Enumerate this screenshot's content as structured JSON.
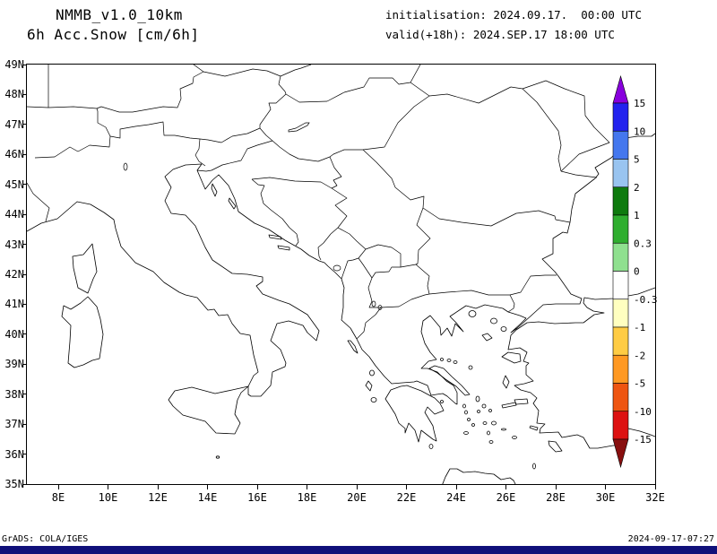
{
  "header": {
    "model": "NMMB_v1.0_10km",
    "field": "6h Acc.Snow [cm/6h]",
    "init_line": "initialisation: 2024.09.17.  00:00 UTC",
    "valid_line": "valid(+18h): 2024.SEP.17 18:00 UTC"
  },
  "map": {
    "lat_ticks": [
      "49N",
      "48N",
      "47N",
      "46N",
      "45N",
      "44N",
      "43N",
      "42N",
      "41N",
      "40N",
      "39N",
      "38N",
      "37N",
      "36N",
      "35N"
    ],
    "lon_ticks": [
      "8E",
      "10E",
      "12E",
      "14E",
      "16E",
      "18E",
      "20E",
      "22E",
      "24E",
      "26E",
      "28E",
      "30E",
      "32E"
    ]
  },
  "colorbar": {
    "labels": [
      "15",
      "10",
      "5",
      "2",
      "1",
      "0.3",
      "0",
      "-0.3",
      "-1",
      "-2",
      "-5",
      "-10",
      "-15"
    ],
    "colors": [
      "#8800dd",
      "#2222ee",
      "#4477ee",
      "#99c4f0",
      "#0e7a0e",
      "#2fae2f",
      "#8fe08f",
      "#ffffff",
      "#ffffc0",
      "#ffcc44",
      "#ff9922",
      "#ee5511",
      "#dd1111",
      "#880f0f"
    ]
  },
  "footer": {
    "credit": "GrADS: COLA/IGES",
    "timestamp": "2024-09-17-07:27",
    "bar_color": "#10107a"
  }
}
